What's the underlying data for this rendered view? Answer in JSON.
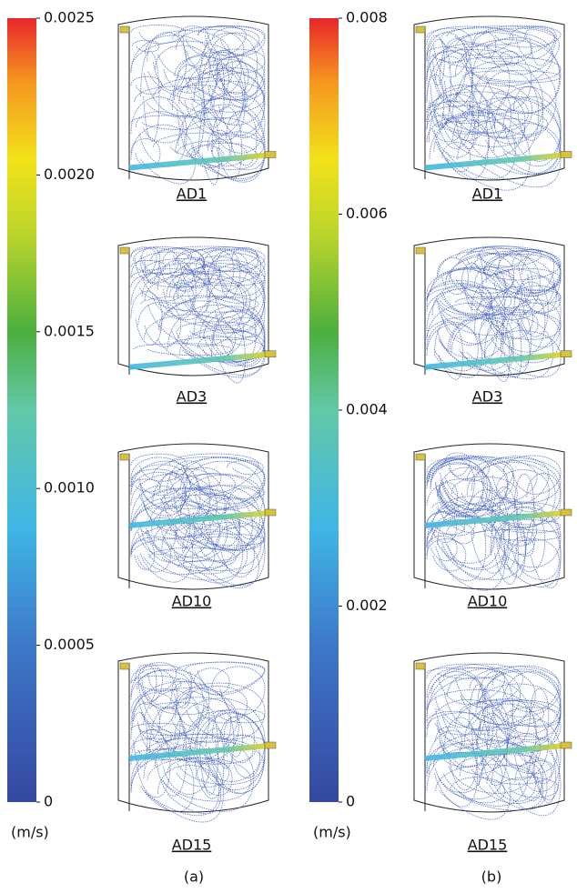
{
  "panels": [
    {
      "label": "(a)",
      "colorbar": {
        "lim": [
          0,
          0.0025
        ],
        "ticks": [
          0.0025,
          {
            "value": 0.002,
            "label": "0.0020"
          },
          0.0015,
          {
            "value": 0.001,
            "label": "0.0010"
          },
          0.0005,
          0
        ],
        "unit": "(m/s)"
      },
      "cases": [
        "AD1",
        "AD3",
        "AD10",
        "AD15"
      ]
    },
    {
      "label": "(b)",
      "colorbar": {
        "lim": [
          0,
          0.008
        ],
        "ticks": [
          0.008,
          0.006,
          0.004,
          0.002,
          0
        ],
        "unit": "(m/s)"
      },
      "cases": [
        "AD1",
        "AD3",
        "AD10",
        "AD15"
      ]
    }
  ]
}
